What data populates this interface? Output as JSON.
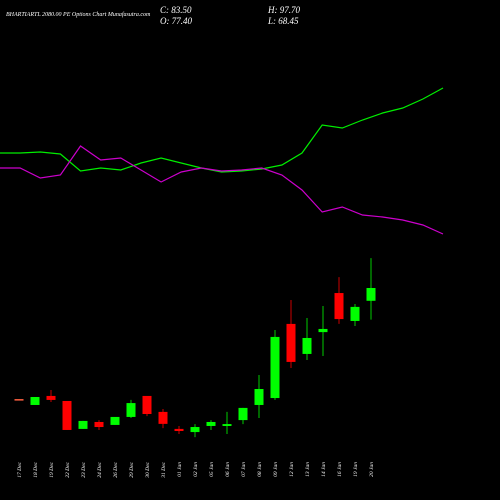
{
  "chart_data": {
    "type": "candlestick",
    "title": "BHARTIARTL 2080.00 PE Options Chart Munafasutra.com",
    "close_label": "C: 83.50",
    "high_label": "H: 97.70",
    "open_label": "O: 77.40",
    "low_label": "L: 68.45",
    "categories": [
      "17 Dec",
      "18 Dec",
      "19 Dec",
      "22 Dec",
      "23 Dec",
      "24 Dec",
      "26 Dec",
      "29 Dec",
      "30 Dec",
      "31 Dec",
      "01 Jan",
      "02 Jan",
      "05 Jan",
      "06 Jan",
      "07 Jan",
      "08 Jan",
      "09 Jan",
      "12 Jan",
      "13 Jan",
      "14 Jan",
      "16 Jan",
      "19 Jan",
      "20 Jan"
    ],
    "open": [
      30.6,
      27.8,
      32.1,
      29.7,
      16.4,
      19.7,
      18.3,
      22.1,
      32.1,
      24.5,
      16.4,
      14.9,
      17.8,
      17.8,
      20.6,
      27.8,
      31.1,
      66.4,
      52.1,
      62.5,
      81.1,
      67.8,
      77.4
    ],
    "high": [
      30.6,
      31.6,
      34.9,
      29.7,
      20.2,
      20.6,
      22.1,
      30.2,
      32.1,
      25.9,
      17.8,
      18.7,
      20.6,
      24.5,
      26.4,
      42.1,
      63.5,
      77.8,
      69.2,
      74.9,
      88.7,
      75.9,
      97.7
    ],
    "low": [
      30.6,
      27.8,
      29.2,
      15.9,
      16.4,
      15.9,
      18.3,
      21.6,
      22.5,
      16.8,
      14.0,
      12.5,
      15.9,
      14.0,
      18.7,
      21.6,
      30.2,
      45.4,
      49.2,
      51.1,
      66.4,
      65.4,
      68.45
    ],
    "close": [
      30.6,
      31.6,
      30.2,
      15.9,
      20.2,
      17.3,
      22.1,
      28.7,
      23.5,
      18.8,
      15.4,
      17.3,
      19.7,
      18.7,
      26.4,
      35.4,
      60.2,
      48.3,
      59.7,
      64.0,
      68.7,
      74.5,
      83.5
    ],
    "up_color": "#00ff00",
    "down_color": "#ff0000",
    "flat_color": "#ff6040",
    "lines": [
      {
        "color": "#00ee00",
        "values": [
          97,
          97,
          98,
          96,
          79,
          82,
          80,
          87,
          92,
          87,
          82,
          78,
          79,
          81,
          85,
          97,
          125,
          122,
          130,
          137,
          142,
          151,
          162
        ]
      },
      {
        "color": "#cc00cc",
        "values": [
          82,
          82,
          72,
          75,
          104,
          90,
          92,
          80,
          68,
          78,
          82,
          79,
          80,
          82,
          75,
          60,
          38,
          43,
          35,
          33,
          30,
          25,
          16
        ]
      }
    ]
  }
}
